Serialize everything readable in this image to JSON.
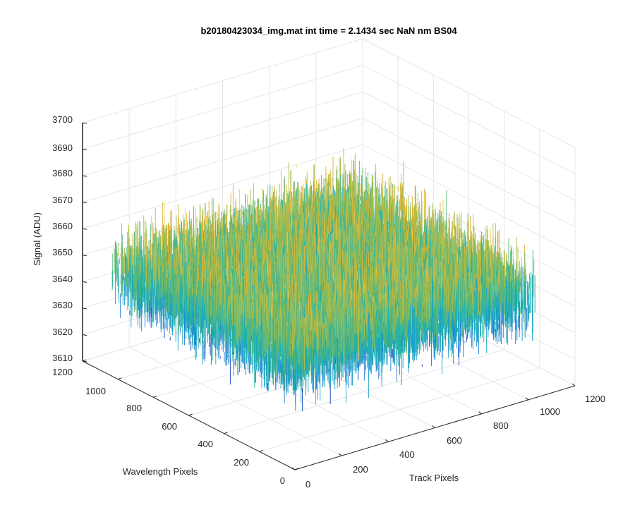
{
  "chart_data": {
    "type": "surface",
    "title": "b20180423034_img.mat int time = 2.1434 sec  NaN nm BS04",
    "xlabel": "Track Pixels",
    "ylabel": "Wavelength Pixels",
    "zlabel": "Signal (ADU)",
    "xlim": [
      0,
      1200
    ],
    "ylim": [
      0,
      1200
    ],
    "zlim": [
      3610,
      3700
    ],
    "xticks": [
      0,
      200,
      400,
      600,
      800,
      1000,
      1200
    ],
    "yticks": [
      0,
      200,
      400,
      600,
      800,
      1000,
      1200
    ],
    "zticks": [
      3610,
      3620,
      3630,
      3640,
      3650,
      3660,
      3670,
      3680,
      3690,
      3700
    ],
    "xtick_labels": [
      "0",
      "200",
      "400",
      "600",
      "800",
      "1000",
      "1200"
    ],
    "ytick_labels": [
      "0",
      "200",
      "400",
      "600",
      "800",
      "1000",
      "1200"
    ],
    "ztick_labels": [
      "3610",
      "3620",
      "3630",
      "3640",
      "3650",
      "3660",
      "3670",
      "3680",
      "3690",
      "3700"
    ],
    "data_extent": {
      "x": [
        0,
        1024
      ],
      "y": [
        0,
        1024
      ]
    },
    "signal_mean": 3650,
    "signal_range": [
      3610,
      3700
    ],
    "grid": true,
    "colormap": [
      "#0a3fb8",
      "#1f7ad4",
      "#1aa0c8",
      "#20b2aa",
      "#5ab87c",
      "#a8bd4a",
      "#d9b53a",
      "#f5c842"
    ]
  }
}
